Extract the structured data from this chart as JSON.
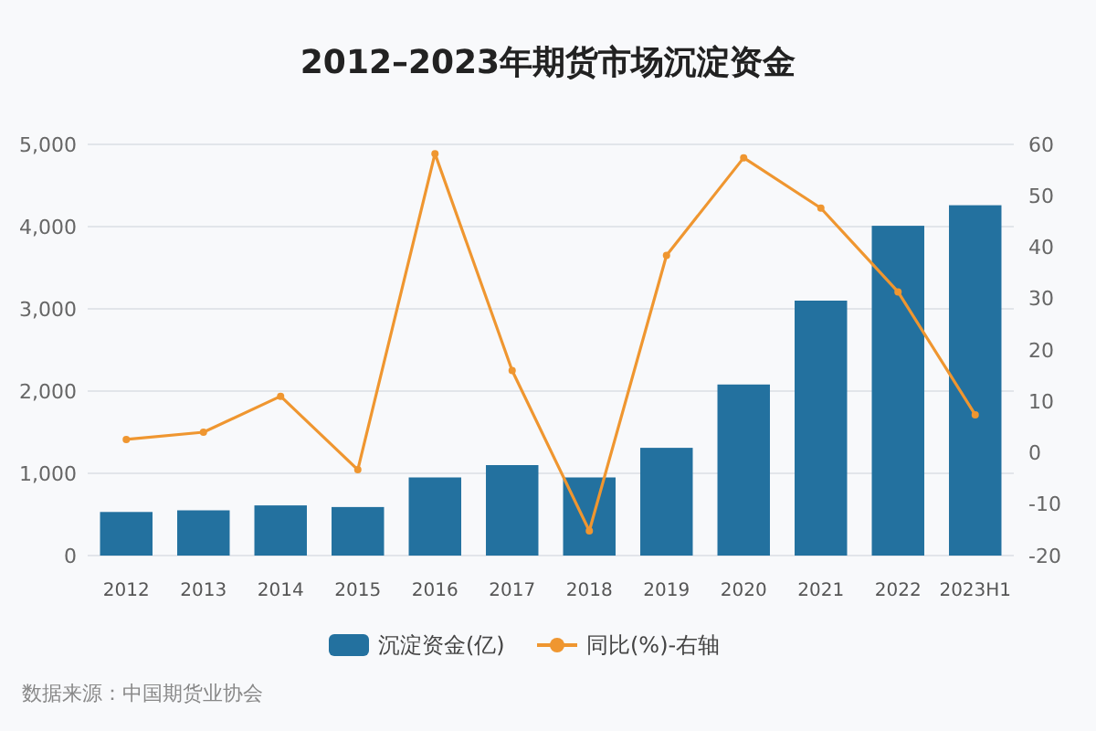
{
  "chart_data": {
    "type": "bar",
    "title": "2012–2023年期货市场沉淀资金",
    "categories": [
      "2012",
      "2013",
      "2014",
      "2015",
      "2016",
      "2017",
      "2018",
      "2019",
      "2020",
      "2021",
      "2022",
      "2023H1"
    ],
    "series": [
      {
        "name": "沉淀资金(亿)",
        "color": "#23719f",
        "values": [
          530,
          550,
          610,
          590,
          950,
          1100,
          950,
          1310,
          2080,
          3100,
          4010,
          4260
        ]
      },
      {
        "name": "同比(%)-右轴",
        "type": "line",
        "axis": "y2",
        "color": "#ef9630",
        "values": [
          2.6,
          4,
          11,
          -3.3,
          58.2,
          16,
          -15.2,
          38.4,
          57.4,
          47.6,
          31.3,
          7.4
        ]
      }
    ],
    "ylim": [
      0,
      5000
    ],
    "yticks": [
      {
        "value": 0,
        "label": "0"
      },
      {
        "value": 1000,
        "label": "1,000"
      },
      {
        "value": 2000,
        "label": "2,000"
      },
      {
        "value": 3000,
        "label": "3,000"
      },
      {
        "value": 4000,
        "label": "4,000"
      },
      {
        "value": 5000,
        "label": "5,000"
      }
    ],
    "y2lim": [
      -20,
      60
    ],
    "y2ticks": [
      -20,
      -10,
      0,
      10,
      20,
      30,
      40,
      50,
      60
    ],
    "grid": "y",
    "legend": "bottom",
    "marker": "circle",
    "line_style": "solid",
    "annotations": [
      "数据来源：中国期货业协会"
    ]
  }
}
